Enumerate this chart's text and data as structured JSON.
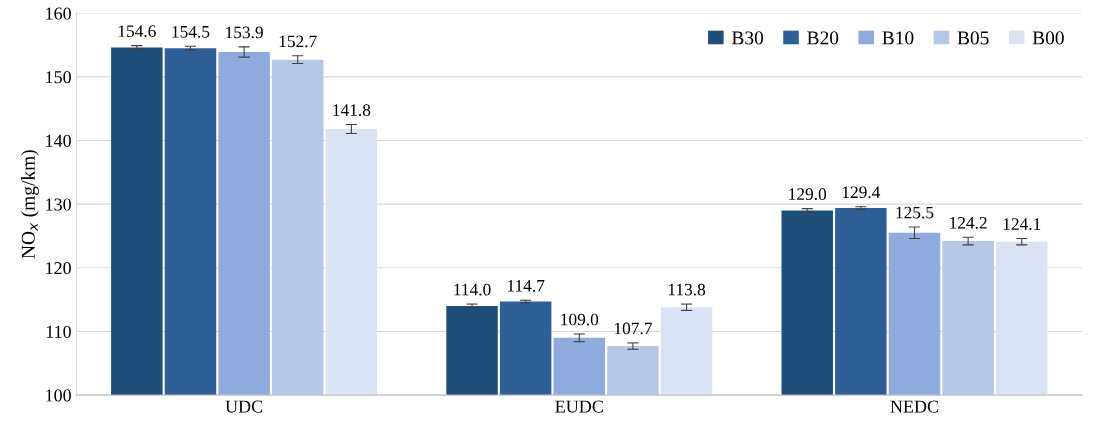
{
  "chart_data": {
    "type": "bar",
    "ylabel": "NO$_{x}$ (mg/km)",
    "categories": [
      "UDC",
      "EUDC",
      "NEDC"
    ],
    "series": [
      {
        "name": "B30",
        "color": "#1f4e79",
        "values": [
          154.6,
          114.0,
          129.0
        ],
        "errors": [
          0.3,
          0.3,
          0.3
        ],
        "value_labels": [
          "154.6",
          "114.0",
          "129.0"
        ]
      },
      {
        "name": "B20",
        "color": "#2f5f97",
        "values": [
          154.5,
          114.7,
          129.4
        ],
        "errors": [
          0.3,
          0.2,
          0.2
        ],
        "value_labels": [
          "154.5",
          "114.7",
          "129.4"
        ]
      },
      {
        "name": "B10",
        "color": "#8faadc",
        "values": [
          153.9,
          109.0,
          125.5
        ],
        "errors": [
          0.8,
          0.6,
          0.9
        ],
        "value_labels": [
          "153.9",
          "109.0",
          "125.5"
        ]
      },
      {
        "name": "B05",
        "color": "#b4c7e7",
        "values": [
          152.7,
          107.7,
          124.2
        ],
        "errors": [
          0.6,
          0.5,
          0.6
        ],
        "value_labels": [
          "152.7",
          "107.7",
          "124.2"
        ]
      },
      {
        "name": "B00",
        "color": "#dae3f3",
        "values": [
          141.8,
          113.8,
          124.1
        ],
        "errors": [
          0.7,
          0.5,
          0.5
        ],
        "value_labels": [
          "141.8",
          "113.8",
          "124.1"
        ]
      }
    ],
    "ylim": [
      100,
      160
    ],
    "yticks": [
      100,
      110,
      120,
      130,
      140,
      150,
      160
    ],
    "grid": "y",
    "legend": "top right"
  }
}
